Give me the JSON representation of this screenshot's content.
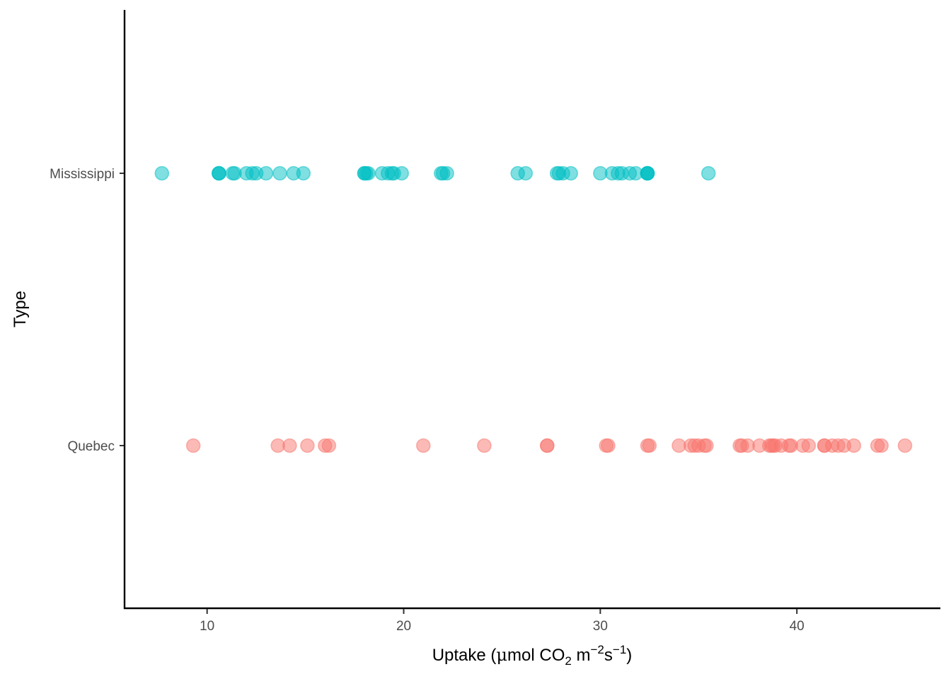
{
  "chart_data": {
    "type": "scatter",
    "title": "",
    "xlabel": "Uptake (μmol CO2 m−2s−1)",
    "xlabel_parts": {
      "before_mu": "Uptake (",
      "mu": "μ",
      "mol": "mol CO",
      "sub_2": "2",
      "m": " m",
      "sup_neg2": "−2",
      "s": "s",
      "sup_neg1": "−1",
      "close": ")"
    },
    "ylabel": "Type",
    "xlim": [
      5.8,
      47.3
    ],
    "x_ticks": [
      10,
      20,
      30,
      40
    ],
    "x_tick_labels": [
      "10",
      "20",
      "30",
      "40"
    ],
    "categories": [
      "Quebec",
      "Mississippi"
    ],
    "grid": false,
    "legend": "none",
    "point_opacity": 0.5,
    "series": [
      {
        "category": "Mississippi",
        "color": "#00BFC4",
        "x": [
          7.7,
          10.6,
          10.6,
          10.6,
          11.3,
          11.4,
          12.0,
          12.3,
          12.5,
          13.0,
          13.7,
          14.4,
          14.9,
          18.0,
          18.0,
          18.1,
          18.2,
          18.9,
          19.2,
          19.4,
          19.5,
          19.9,
          21.9,
          22.0,
          22.2,
          25.8,
          26.2,
          27.8,
          27.9,
          28.1,
          28.5,
          30.0,
          30.6,
          30.9,
          31.1,
          31.5,
          31.8,
          32.4,
          32.4,
          32.4,
          32.4,
          35.5
        ]
      },
      {
        "category": "Quebec",
        "color": "#F8766D",
        "x": [
          9.3,
          13.6,
          14.2,
          15.1,
          16.0,
          16.2,
          21.0,
          24.1,
          27.3,
          27.3,
          30.3,
          30.4,
          32.4,
          32.5,
          34.0,
          34.6,
          34.8,
          35.0,
          35.3,
          35.4,
          37.1,
          37.2,
          37.5,
          38.1,
          38.6,
          38.7,
          38.8,
          38.9,
          39.2,
          39.6,
          39.7,
          40.3,
          40.6,
          41.4,
          41.4,
          41.8,
          42.1,
          42.4,
          42.9,
          44.1,
          44.3,
          45.5
        ]
      }
    ]
  }
}
